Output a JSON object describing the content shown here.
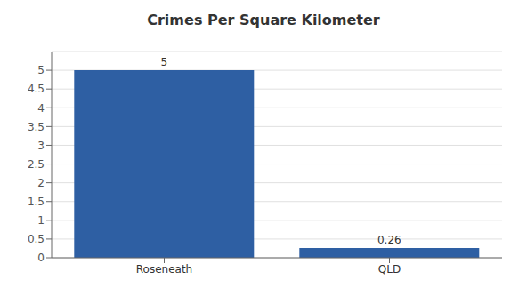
{
  "chart_data": {
    "type": "bar",
    "title": "Crimes Per Square Kilometer",
    "categories": [
      "Roseneath",
      "QLD"
    ],
    "values": [
      5,
      0.26
    ],
    "color": "#2e5fa3",
    "ylim": [
      0,
      5.5
    ],
    "yticks": [
      0,
      0.5,
      1,
      1.5,
      2,
      2.5,
      3,
      3.5,
      4,
      4.5,
      5
    ],
    "grid": true,
    "data_labels": true
  }
}
